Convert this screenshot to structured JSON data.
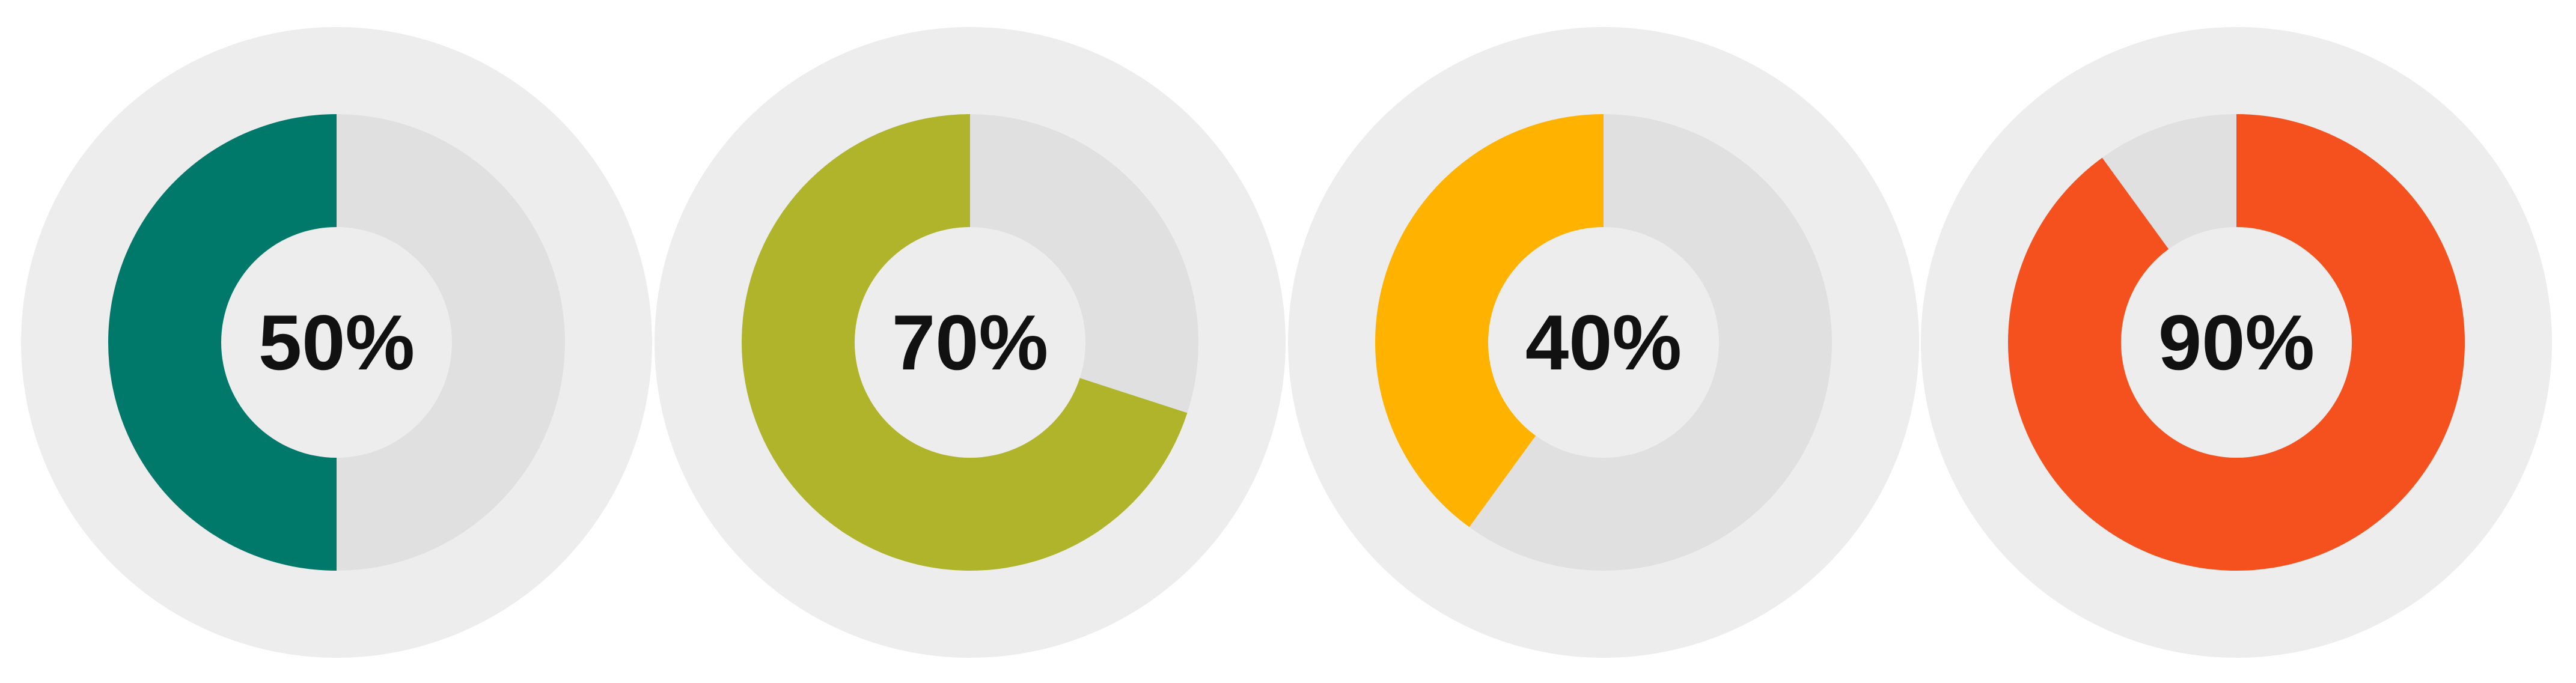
{
  "chart_data": [
    {
      "type": "pie",
      "style": "donut",
      "label": "50%",
      "value": 50,
      "max": 100,
      "fill_color": "#00796B",
      "remainder_color": "#E0E0E0",
      "halo_color": "#EDEDED",
      "center_color": "#EDEDED",
      "direction": "counterclockwise-from-top"
    },
    {
      "type": "pie",
      "style": "donut",
      "label": "70%",
      "value": 70,
      "max": 100,
      "fill_color": "#AFB42B",
      "remainder_color": "#E0E0E0",
      "halo_color": "#EDEDED",
      "center_color": "#EDEDED",
      "direction": "counterclockwise-from-top"
    },
    {
      "type": "pie",
      "style": "donut",
      "label": "40%",
      "value": 40,
      "max": 100,
      "fill_color": "#FFB300",
      "remainder_color": "#E0E0E0",
      "halo_color": "#EDEDED",
      "center_color": "#EDEDED",
      "direction": "counterclockwise-from-top"
    },
    {
      "type": "pie",
      "style": "donut",
      "label": "90%",
      "value": 90,
      "max": 100,
      "fill_color": "#F4511E",
      "remainder_color": "#E0E0E0",
      "halo_color": "#EDEDED",
      "center_color": "#EDEDED",
      "direction": "clockwise-from-top"
    }
  ]
}
